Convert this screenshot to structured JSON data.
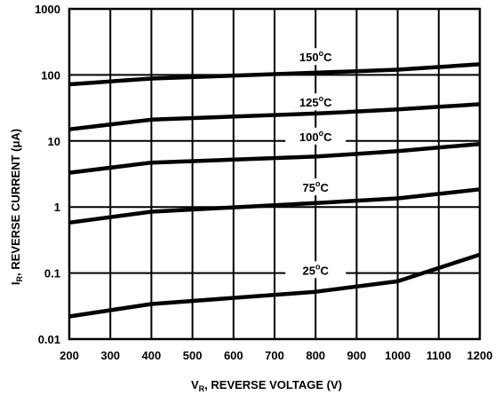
{
  "chart_data": {
    "type": "line",
    "title": "",
    "xlabel": {
      "main": "V",
      "sub": "R",
      "rest": ", REVERSE VOLTAGE (V)"
    },
    "ylabel": {
      "main": "I",
      "sub": "R",
      "rest": ", REVERSE CURRENT (μA)"
    },
    "xlim": [
      200,
      1200
    ],
    "ylim": [
      0.01,
      1000
    ],
    "yscale": "log",
    "grid": true,
    "x_ticks": [
      "200",
      "300",
      "400",
      "500",
      "600",
      "700",
      "800",
      "900",
      "1000",
      "1100",
      "1200"
    ],
    "x_tick_values": [
      200,
      300,
      400,
      500,
      600,
      700,
      800,
      900,
      1000,
      1100,
      1200
    ],
    "y_ticks": [
      "0.01",
      "0.1",
      "1",
      "10",
      "100",
      "1000"
    ],
    "y_tick_values": [
      0.01,
      0.1,
      1,
      10,
      100,
      1000
    ],
    "series": [
      {
        "name": "150°C",
        "label_main": "150",
        "label_sup": "o",
        "label_unit": "C",
        "label_at": [
          800,
          160
        ],
        "points": [
          [
            200,
            72
          ],
          [
            400,
            88
          ],
          [
            800,
            108
          ],
          [
            1000,
            120
          ],
          [
            1200,
            145
          ]
        ]
      },
      {
        "name": "125°C",
        "label_main": "125",
        "label_sup": "o",
        "label_unit": "C",
        "label_at": [
          800,
          33
        ],
        "points": [
          [
            200,
            15
          ],
          [
            400,
            21
          ],
          [
            800,
            26
          ],
          [
            1000,
            30
          ],
          [
            1200,
            36
          ]
        ]
      },
      {
        "name": "100°C",
        "label_main": "100",
        "label_sup": "o",
        "label_unit": "C",
        "label_at": [
          800,
          10
        ],
        "points": [
          [
            200,
            3.3
          ],
          [
            400,
            4.7
          ],
          [
            800,
            5.8
          ],
          [
            1000,
            7
          ],
          [
            1200,
            9
          ]
        ]
      },
      {
        "name": "75°C",
        "label_main": "75",
        "label_sup": "o",
        "label_unit": "C",
        "label_at": [
          800,
          1.7
        ],
        "points": [
          [
            200,
            0.58
          ],
          [
            400,
            0.85
          ],
          [
            800,
            1.15
          ],
          [
            1000,
            1.35
          ],
          [
            1200,
            1.85
          ]
        ]
      },
      {
        "name": "25°C",
        "label_main": "25",
        "label_sup": "o",
        "label_unit": "C",
        "label_at": [
          800,
          0.095
        ],
        "points": [
          [
            200,
            0.022
          ],
          [
            400,
            0.034
          ],
          [
            800,
            0.052
          ],
          [
            1000,
            0.075
          ],
          [
            1200,
            0.19
          ]
        ]
      }
    ]
  }
}
